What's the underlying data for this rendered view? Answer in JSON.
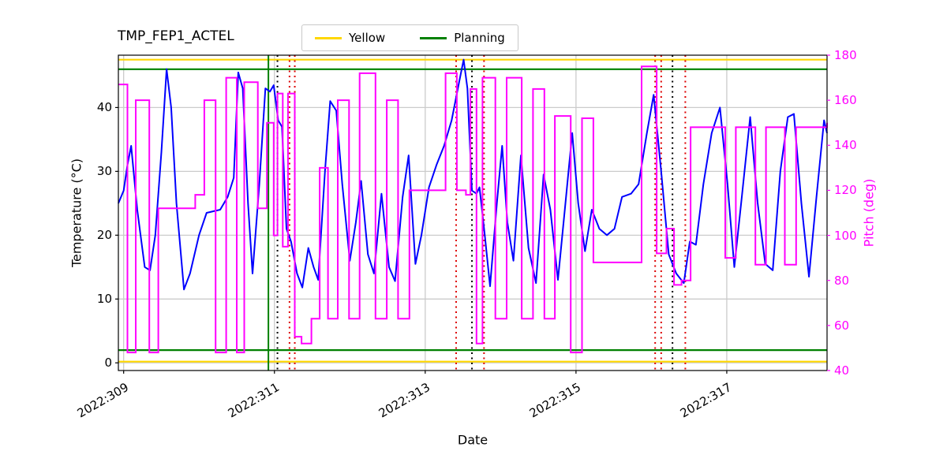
{
  "title": "TMP_FEP1_ACTEL",
  "legend": {
    "items": [
      {
        "label": "Yellow",
        "color": "#FFD700"
      },
      {
        "label": "Planning",
        "color": "#008000"
      }
    ]
  },
  "axes": {
    "x_label": "Date",
    "y_left_label": "Temperature (°C)",
    "y_right_label": "Pitch (deg)",
    "y_right_color": "#FF00FF",
    "x_ticks": [
      {
        "value": 309,
        "label": "2022:309"
      },
      {
        "value": 311,
        "label": "2022:311"
      },
      {
        "value": 313,
        "label": "2022:313"
      },
      {
        "value": 315,
        "label": "2022:315"
      },
      {
        "value": 317,
        "label": "2022:317"
      }
    ],
    "y_left_ticks": [
      0,
      10,
      20,
      30,
      40
    ],
    "y_right_ticks": [
      40,
      60,
      80,
      100,
      120,
      140,
      160,
      180
    ],
    "xlim": [
      308.93,
      318.33
    ],
    "ylim_left": [
      -1.2,
      48.2
    ],
    "ylim_right": [
      40,
      180
    ],
    "grid": true
  },
  "chart_data": {
    "type": "line",
    "title": "TMP_FEP1_ACTEL",
    "xlabel": "Date",
    "ylabel_left": "Temperature (°C)",
    "ylabel_right": "Pitch (deg)",
    "series": [
      {
        "name": "temperature",
        "axis": "left",
        "color": "#0000FF",
        "style": "line",
        "points": [
          [
            308.93,
            25
          ],
          [
            309.0,
            27
          ],
          [
            309.05,
            31
          ],
          [
            309.1,
            34
          ],
          [
            309.18,
            24
          ],
          [
            309.28,
            15
          ],
          [
            309.35,
            14.5
          ],
          [
            309.42,
            20
          ],
          [
            309.5,
            33
          ],
          [
            309.57,
            46
          ],
          [
            309.63,
            40
          ],
          [
            309.7,
            25
          ],
          [
            309.8,
            11.5
          ],
          [
            309.88,
            14
          ],
          [
            310.0,
            20
          ],
          [
            310.1,
            23.5
          ],
          [
            310.28,
            24
          ],
          [
            310.38,
            26
          ],
          [
            310.46,
            29
          ],
          [
            310.52,
            45.5
          ],
          [
            310.58,
            43
          ],
          [
            310.65,
            25
          ],
          [
            310.71,
            14
          ],
          [
            310.8,
            28
          ],
          [
            310.88,
            43
          ],
          [
            310.94,
            42.5
          ],
          [
            310.99,
            43.5
          ],
          [
            311.05,
            38
          ],
          [
            311.1,
            37
          ],
          [
            311.16,
            21
          ],
          [
            311.22,
            19
          ],
          [
            311.3,
            14
          ],
          [
            311.37,
            11.8
          ],
          [
            311.45,
            18
          ],
          [
            311.52,
            15
          ],
          [
            311.58,
            13
          ],
          [
            311.67,
            30
          ],
          [
            311.74,
            41
          ],
          [
            311.82,
            39.5
          ],
          [
            311.9,
            28
          ],
          [
            312.0,
            16
          ],
          [
            312.08,
            22
          ],
          [
            312.15,
            28.5
          ],
          [
            312.24,
            17
          ],
          [
            312.32,
            14
          ],
          [
            312.42,
            26.5
          ],
          [
            312.52,
            15
          ],
          [
            312.6,
            12.8
          ],
          [
            312.7,
            26
          ],
          [
            312.78,
            32.5
          ],
          [
            312.87,
            15.5
          ],
          [
            312.95,
            20
          ],
          [
            313.05,
            27.5
          ],
          [
            313.15,
            31
          ],
          [
            313.25,
            34
          ],
          [
            313.35,
            38
          ],
          [
            313.45,
            44
          ],
          [
            313.51,
            47.5
          ],
          [
            313.56,
            43
          ],
          [
            313.62,
            27
          ],
          [
            313.68,
            26.5
          ],
          [
            313.72,
            27.5
          ],
          [
            313.79,
            20
          ],
          [
            313.86,
            12
          ],
          [
            313.95,
            25
          ],
          [
            314.02,
            34
          ],
          [
            314.09,
            22
          ],
          [
            314.17,
            16
          ],
          [
            314.27,
            32.5
          ],
          [
            314.37,
            18
          ],
          [
            314.47,
            12.5
          ],
          [
            314.57,
            29.5
          ],
          [
            314.66,
            24
          ],
          [
            314.76,
            13
          ],
          [
            314.86,
            25
          ],
          [
            314.95,
            36
          ],
          [
            315.03,
            25
          ],
          [
            315.12,
            17.5
          ],
          [
            315.21,
            24
          ],
          [
            315.31,
            21
          ],
          [
            315.41,
            20
          ],
          [
            315.51,
            21
          ],
          [
            315.61,
            26
          ],
          [
            315.73,
            26.5
          ],
          [
            315.83,
            28
          ],
          [
            315.94,
            36
          ],
          [
            316.03,
            42
          ],
          [
            316.13,
            30
          ],
          [
            316.23,
            17
          ],
          [
            316.33,
            14
          ],
          [
            316.43,
            12.5
          ],
          [
            316.51,
            19
          ],
          [
            316.59,
            18.5
          ],
          [
            316.69,
            28
          ],
          [
            316.8,
            36
          ],
          [
            316.91,
            40
          ],
          [
            317.01,
            28
          ],
          [
            317.1,
            15
          ],
          [
            317.2,
            26
          ],
          [
            317.31,
            38.5
          ],
          [
            317.41,
            25
          ],
          [
            317.51,
            15.5
          ],
          [
            317.61,
            14.5
          ],
          [
            317.71,
            30
          ],
          [
            317.81,
            38.5
          ],
          [
            317.89,
            39
          ],
          [
            317.99,
            25
          ],
          [
            318.09,
            13.5
          ],
          [
            318.19,
            26
          ],
          [
            318.29,
            38
          ],
          [
            318.33,
            36
          ]
        ]
      },
      {
        "name": "pitch",
        "axis": "right",
        "color": "#FF00FF",
        "style": "step",
        "points": [
          [
            308.93,
            167
          ],
          [
            309.05,
            48
          ],
          [
            309.16,
            160
          ],
          [
            309.34,
            48
          ],
          [
            309.46,
            112
          ],
          [
            309.95,
            118
          ],
          [
            310.07,
            160
          ],
          [
            310.22,
            48
          ],
          [
            310.36,
            170
          ],
          [
            310.5,
            48
          ],
          [
            310.6,
            168
          ],
          [
            310.78,
            112
          ],
          [
            310.9,
            150
          ],
          [
            310.99,
            100
          ],
          [
            311.04,
            163
          ],
          [
            311.11,
            95
          ],
          [
            311.18,
            163
          ],
          [
            311.27,
            55
          ],
          [
            311.36,
            52
          ],
          [
            311.49,
            63
          ],
          [
            311.6,
            130
          ],
          [
            311.71,
            63
          ],
          [
            311.84,
            160
          ],
          [
            311.99,
            63
          ],
          [
            312.13,
            172
          ],
          [
            312.34,
            63
          ],
          [
            312.49,
            160
          ],
          [
            312.64,
            63
          ],
          [
            312.79,
            120
          ],
          [
            313.27,
            172
          ],
          [
            313.42,
            120
          ],
          [
            313.54,
            118
          ],
          [
            313.6,
            165
          ],
          [
            313.68,
            52
          ],
          [
            313.76,
            170
          ],
          [
            313.93,
            63
          ],
          [
            314.08,
            170
          ],
          [
            314.28,
            63
          ],
          [
            314.43,
            165
          ],
          [
            314.58,
            63
          ],
          [
            314.72,
            153
          ],
          [
            314.93,
            48
          ],
          [
            315.08,
            152
          ],
          [
            315.23,
            88
          ],
          [
            315.87,
            175
          ],
          [
            316.07,
            92
          ],
          [
            316.2,
            103
          ],
          [
            316.3,
            78
          ],
          [
            316.4,
            80
          ],
          [
            316.52,
            148
          ],
          [
            316.98,
            90
          ],
          [
            317.12,
            148
          ],
          [
            317.38,
            87
          ],
          [
            317.52,
            148
          ],
          [
            317.77,
            87
          ],
          [
            317.92,
            148
          ],
          [
            318.33,
            150
          ]
        ]
      }
    ],
    "hlines": [
      {
        "name": "yellow-upper-limit",
        "y": 47.5,
        "color": "#FFD700"
      },
      {
        "name": "yellow-lower-limit",
        "y": 0.2,
        "color": "#FFD700"
      },
      {
        "name": "planning-upper-limit",
        "y": 46.0,
        "color": "#008000"
      },
      {
        "name": "planning-lower-limit",
        "y": 2.0,
        "color": "#008000"
      }
    ],
    "vlines": [
      {
        "x": 310.92,
        "color": "#008000",
        "style": "solid"
      },
      {
        "x": 311.04,
        "color": "#000000",
        "style": "dotted"
      },
      {
        "x": 311.2,
        "color": "#DD0000",
        "style": "dotted"
      },
      {
        "x": 311.27,
        "color": "#DD0000",
        "style": "dotted"
      },
      {
        "x": 313.41,
        "color": "#DD0000",
        "style": "dotted"
      },
      {
        "x": 313.62,
        "color": "#000000",
        "style": "dotted"
      },
      {
        "x": 313.78,
        "color": "#DD0000",
        "style": "dotted"
      },
      {
        "x": 316.05,
        "color": "#DD0000",
        "style": "dotted"
      },
      {
        "x": 316.13,
        "color": "#DD0000",
        "style": "dotted"
      },
      {
        "x": 316.28,
        "color": "#000000",
        "style": "dotted"
      },
      {
        "x": 316.45,
        "color": "#DD0000",
        "style": "dotted"
      }
    ]
  }
}
